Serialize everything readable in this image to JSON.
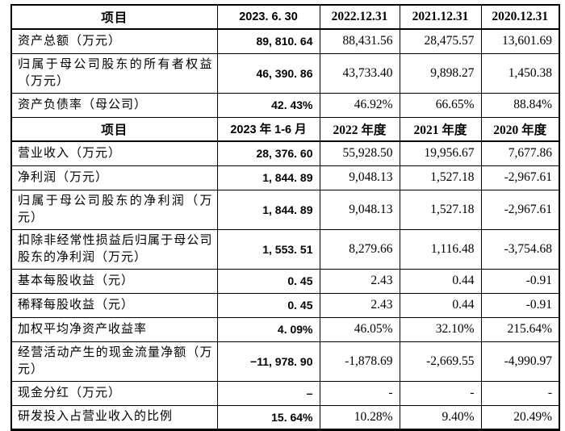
{
  "colors": {
    "background": "#ffffff",
    "border": "#000000",
    "text": "#000000"
  },
  "table": {
    "item_column_header": "项目",
    "rows": [
      {
        "type": "header",
        "label": "项目",
        "values": [
          "2023. 6. 30",
          "2022.12.31",
          "2021.12.31",
          "2020.12.31"
        ]
      },
      {
        "type": "data",
        "label": "资产总额（万元）",
        "values": [
          "89, 810. 64",
          "88,431.56",
          "28,475.57",
          "13,601.69"
        ]
      },
      {
        "type": "data",
        "label": "归属于母公司股东的所有者权益（万元）",
        "values": [
          "46, 390. 86",
          "43,733.40",
          "9,898.27",
          "1,450.38"
        ]
      },
      {
        "type": "data",
        "label": "资产负债率（母公司）",
        "values": [
          "42. 43%",
          "46.92%",
          "66.65%",
          "88.84%"
        ]
      },
      {
        "type": "header",
        "label": "项目",
        "values": [
          "2023 年 1-6 月",
          "2022 年度",
          "2021 年度",
          "2020 年度"
        ]
      },
      {
        "type": "data",
        "label": "营业收入（万元）",
        "values": [
          "28, 376. 60",
          "55,928.50",
          "19,956.67",
          "7,677.86"
        ]
      },
      {
        "type": "data",
        "label": "净利润（万元）",
        "values": [
          "1, 844. 89",
          "9,048.13",
          "1,527.18",
          "-2,967.61"
        ]
      },
      {
        "type": "data",
        "label": "归属于母公司股东的净利润（万元）",
        "values": [
          "1, 844. 89",
          "9,048.13",
          "1,527.18",
          "-2,967.61"
        ]
      },
      {
        "type": "data",
        "label": "扣除非经常性损益后归属于母公司股东的净利润（万元）",
        "values": [
          "1, 553. 51",
          "8,279.66",
          "1,116.48",
          "-3,754.68"
        ]
      },
      {
        "type": "data",
        "label": "基本每股收益（元）",
        "values": [
          "0. 45",
          "2.43",
          "0.44",
          "-0.91"
        ]
      },
      {
        "type": "data",
        "label": "稀释每股收益（元）",
        "values": [
          "0. 45",
          "2.43",
          "0.44",
          "-0.91"
        ]
      },
      {
        "type": "data",
        "label": "加权平均净资产收益率",
        "values": [
          "4. 09%",
          "46.05%",
          "32.10%",
          "215.64%"
        ]
      },
      {
        "type": "data",
        "label": "经营活动产生的现金流量净额（万元）",
        "values": [
          "−11, 978. 90",
          "-1,878.69",
          "-2,669.55",
          "-4,990.97"
        ]
      },
      {
        "type": "data",
        "label": "现金分红（万元）",
        "values": [
          "–",
          "-",
          "-",
          "-"
        ]
      },
      {
        "type": "data",
        "label": "研发投入占营业收入的比例",
        "values": [
          "15. 64%",
          "10.28%",
          "9.40%",
          "20.49%"
        ]
      }
    ]
  }
}
